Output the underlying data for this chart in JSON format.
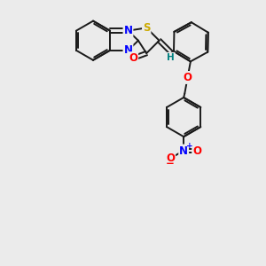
{
  "background_color": "#ebebeb",
  "bond_color": "#1a1a1a",
  "bond_width": 1.4,
  "dbo": 0.055,
  "figsize": [
    3.0,
    3.0
  ],
  "dpi": 100,
  "atom_colors": {
    "N": "#0000ff",
    "O": "#ff0000",
    "S": "#ccaa00",
    "H": "#008080",
    "C": "#1a1a1a"
  },
  "font_size": 8.5,
  "bg": "#ebebeb"
}
